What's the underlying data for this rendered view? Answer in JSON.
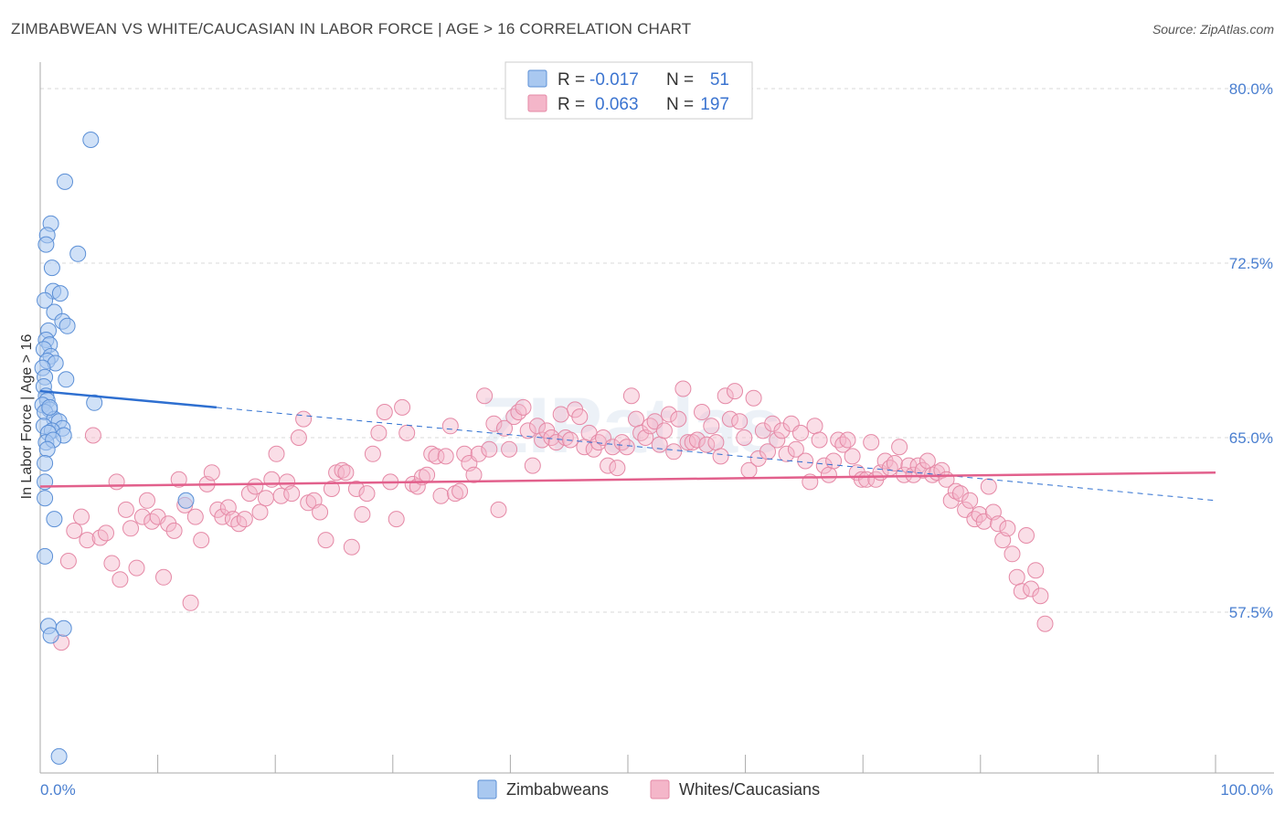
{
  "title": "ZIMBABWEAN VS WHITE/CAUCASIAN IN LABOR FORCE | AGE > 16 CORRELATION CHART",
  "source": "Source: ZipAtlas.com",
  "watermark": "ZIPatlas",
  "colors": {
    "blue_fill": "#a9c8f0",
    "blue_stroke": "#5b8fd6",
    "blue_line": "#2e6fd0",
    "pink_fill": "#f4b6c9",
    "pink_stroke": "#e589a6",
    "pink_line": "#e2608c",
    "grid": "#d9d9d9",
    "tick_label": "#4a7fd0"
  },
  "legend": {
    "rows": [
      {
        "r_label": "R =",
        "r_value": "-0.017",
        "n_label": "N =",
        "n_value": "51",
        "color": "blue"
      },
      {
        "r_label": "R =",
        "r_value": "0.063",
        "n_label": "N =",
        "n_value": "197",
        "color": "pink"
      }
    ]
  },
  "bottom_legend": [
    {
      "label": "Zimbabweans",
      "color": "blue"
    },
    {
      "label": "Whites/Caucasians",
      "color": "pink"
    }
  ],
  "chart_data": {
    "type": "scatter",
    "title": "ZIMBABWEAN VS WHITE/CAUCASIAN IN LABOR FORCE | AGE > 16 CORRELATION CHART",
    "xlabel": "",
    "ylabel": "In Labor Force | Age > 16",
    "xlim": [
      0,
      100
    ],
    "ylim": [
      50.5,
      81.5
    ],
    "x_tick_labels": [
      {
        "value": 0,
        "label": "0.0%"
      },
      {
        "value": 100,
        "label": "100.0%"
      }
    ],
    "x_minor_ticks": [
      10,
      20,
      30,
      40,
      50,
      60,
      70,
      80,
      90,
      100
    ],
    "y_ticks": [
      {
        "value": 80.0,
        "label": "80.0%"
      },
      {
        "value": 72.5,
        "label": "72.5%"
      },
      {
        "value": 65.0,
        "label": "65.0%"
      },
      {
        "value": 57.5,
        "label": "57.5%"
      }
    ],
    "grid": true,
    "series": [
      {
        "name": "Zimbabweans",
        "color": "blue",
        "trend": {
          "solid": [
            [
              0,
              67.0
            ],
            [
              15,
              66.3
            ]
          ],
          "dashed": [
            [
              15,
              66.3
            ],
            [
              100,
              62.3
            ]
          ]
        },
        "points": [
          [
            4.3,
            77.8
          ],
          [
            2.1,
            76.0
          ],
          [
            0.9,
            74.2
          ],
          [
            0.6,
            73.7
          ],
          [
            0.5,
            73.3
          ],
          [
            3.2,
            72.9
          ],
          [
            1.0,
            72.3
          ],
          [
            1.1,
            71.3
          ],
          [
            1.7,
            71.2
          ],
          [
            0.4,
            70.9
          ],
          [
            1.2,
            70.4
          ],
          [
            1.9,
            70.0
          ],
          [
            2.3,
            69.8
          ],
          [
            0.7,
            69.6
          ],
          [
            0.5,
            69.2
          ],
          [
            0.8,
            69.0
          ],
          [
            0.3,
            68.8
          ],
          [
            0.9,
            68.5
          ],
          [
            0.6,
            68.3
          ],
          [
            1.3,
            68.2
          ],
          [
            0.2,
            68.0
          ],
          [
            0.4,
            67.6
          ],
          [
            2.2,
            67.5
          ],
          [
            0.3,
            67.2
          ],
          [
            0.5,
            66.8
          ],
          [
            0.6,
            66.6
          ],
          [
            4.6,
            66.5
          ],
          [
            0.2,
            66.4
          ],
          [
            0.8,
            66.2
          ],
          [
            0.4,
            66.1
          ],
          [
            1.2,
            65.8
          ],
          [
            1.6,
            65.7
          ],
          [
            0.3,
            65.5
          ],
          [
            1.9,
            65.4
          ],
          [
            1.0,
            65.3
          ],
          [
            0.7,
            65.2
          ],
          [
            2.0,
            65.1
          ],
          [
            0.5,
            64.8
          ],
          [
            1.1,
            64.9
          ],
          [
            0.6,
            64.5
          ],
          [
            0.4,
            63.9
          ],
          [
            0.4,
            63.1
          ],
          [
            0.4,
            62.4
          ],
          [
            12.4,
            62.3
          ],
          [
            1.2,
            61.5
          ],
          [
            0.4,
            59.9
          ],
          [
            0.7,
            56.9
          ],
          [
            2.0,
            56.8
          ],
          [
            0.9,
            56.5
          ],
          [
            1.6,
            51.3
          ],
          [
            0.8,
            66.3
          ]
        ]
      },
      {
        "name": "Whites/Caucasians",
        "color": "pink",
        "trend": {
          "solid": [
            [
              0,
              62.9
            ],
            [
              100,
              63.5
            ]
          ]
        },
        "points": [
          [
            1.8,
            56.2
          ],
          [
            2.4,
            59.7
          ],
          [
            2.9,
            61.0
          ],
          [
            3.5,
            61.6
          ],
          [
            4.0,
            60.6
          ],
          [
            4.5,
            65.1
          ],
          [
            5.1,
            60.7
          ],
          [
            5.6,
            60.9
          ],
          [
            6.1,
            59.6
          ],
          [
            6.5,
            63.1
          ],
          [
            6.8,
            58.9
          ],
          [
            7.3,
            61.9
          ],
          [
            7.7,
            61.1
          ],
          [
            8.2,
            59.4
          ],
          [
            8.7,
            61.6
          ],
          [
            9.1,
            62.3
          ],
          [
            9.5,
            61.4
          ],
          [
            10.0,
            61.6
          ],
          [
            10.5,
            59.0
          ],
          [
            10.9,
            61.3
          ],
          [
            11.4,
            61.0
          ],
          [
            11.8,
            63.2
          ],
          [
            12.3,
            62.1
          ],
          [
            12.8,
            57.9
          ],
          [
            13.2,
            61.6
          ],
          [
            13.7,
            60.6
          ],
          [
            14.2,
            63.0
          ],
          [
            14.6,
            63.5
          ],
          [
            15.1,
            61.9
          ],
          [
            15.5,
            61.6
          ],
          [
            16.0,
            62.0
          ],
          [
            16.4,
            61.5
          ],
          [
            16.9,
            61.3
          ],
          [
            17.4,
            61.5
          ],
          [
            17.8,
            62.6
          ],
          [
            18.3,
            62.9
          ],
          [
            18.7,
            61.8
          ],
          [
            19.2,
            62.4
          ],
          [
            19.7,
            63.2
          ],
          [
            20.1,
            64.3
          ],
          [
            20.5,
            62.5
          ],
          [
            21.0,
            63.1
          ],
          [
            21.4,
            62.6
          ],
          [
            22.0,
            65.0
          ],
          [
            22.4,
            65.8
          ],
          [
            22.8,
            62.2
          ],
          [
            23.3,
            62.3
          ],
          [
            23.8,
            61.8
          ],
          [
            24.3,
            60.6
          ],
          [
            24.8,
            62.8
          ],
          [
            25.2,
            63.5
          ],
          [
            25.7,
            63.6
          ],
          [
            26.0,
            63.5
          ],
          [
            26.5,
            60.3
          ],
          [
            26.9,
            62.8
          ],
          [
            27.4,
            61.7
          ],
          [
            27.8,
            62.6
          ],
          [
            28.3,
            64.3
          ],
          [
            28.8,
            65.2
          ],
          [
            29.3,
            66.1
          ],
          [
            29.8,
            63.1
          ],
          [
            30.3,
            61.5
          ],
          [
            30.8,
            66.3
          ],
          [
            31.2,
            65.2
          ],
          [
            31.7,
            63.0
          ],
          [
            32.1,
            62.9
          ],
          [
            32.5,
            63.3
          ],
          [
            32.9,
            63.4
          ],
          [
            33.3,
            64.3
          ],
          [
            33.7,
            64.2
          ],
          [
            34.1,
            62.5
          ],
          [
            34.5,
            64.2
          ],
          [
            34.9,
            65.5
          ],
          [
            35.3,
            62.6
          ],
          [
            35.7,
            62.7
          ],
          [
            36.1,
            64.3
          ],
          [
            36.5,
            63.9
          ],
          [
            36.9,
            63.4
          ],
          [
            37.3,
            64.3
          ],
          [
            37.8,
            66.8
          ],
          [
            38.2,
            64.5
          ],
          [
            38.6,
            65.6
          ],
          [
            39.0,
            61.9
          ],
          [
            39.5,
            65.4
          ],
          [
            39.9,
            64.5
          ],
          [
            40.3,
            65.9
          ],
          [
            40.7,
            66.1
          ],
          [
            41.1,
            66.3
          ],
          [
            41.5,
            65.3
          ],
          [
            41.9,
            63.8
          ],
          [
            42.3,
            65.5
          ],
          [
            42.7,
            64.9
          ],
          [
            43.1,
            65.3
          ],
          [
            43.5,
            65.0
          ],
          [
            43.9,
            64.8
          ],
          [
            44.3,
            66.0
          ],
          [
            44.7,
            65.0
          ],
          [
            45.1,
            64.9
          ],
          [
            45.5,
            66.2
          ],
          [
            45.9,
            65.9
          ],
          [
            46.3,
            64.6
          ],
          [
            46.7,
            65.2
          ],
          [
            47.1,
            64.5
          ],
          [
            47.5,
            64.8
          ],
          [
            47.9,
            65.0
          ],
          [
            48.3,
            63.8
          ],
          [
            48.7,
            64.6
          ],
          [
            49.1,
            63.7
          ],
          [
            49.5,
            64.8
          ],
          [
            49.9,
            64.6
          ],
          [
            50.3,
            66.8
          ],
          [
            50.7,
            65.8
          ],
          [
            51.1,
            65.2
          ],
          [
            51.5,
            65.0
          ],
          [
            51.9,
            65.5
          ],
          [
            52.3,
            65.7
          ],
          [
            52.7,
            64.7
          ],
          [
            53.1,
            65.3
          ],
          [
            53.5,
            66.0
          ],
          [
            53.9,
            64.4
          ],
          [
            54.3,
            65.8
          ],
          [
            54.7,
            67.1
          ],
          [
            55.1,
            64.8
          ],
          [
            55.5,
            64.8
          ],
          [
            55.9,
            64.9
          ],
          [
            56.3,
            66.1
          ],
          [
            56.7,
            64.7
          ],
          [
            57.1,
            65.5
          ],
          [
            57.5,
            64.8
          ],
          [
            57.9,
            64.2
          ],
          [
            58.3,
            66.8
          ],
          [
            58.7,
            65.8
          ],
          [
            59.1,
            67.0
          ],
          [
            59.5,
            65.7
          ],
          [
            59.9,
            65.0
          ],
          [
            60.3,
            63.6
          ],
          [
            60.7,
            66.7
          ],
          [
            61.1,
            64.1
          ],
          [
            61.5,
            65.3
          ],
          [
            61.9,
            64.4
          ],
          [
            62.3,
            65.6
          ],
          [
            62.7,
            64.9
          ],
          [
            63.1,
            65.3
          ],
          [
            63.5,
            64.3
          ],
          [
            63.9,
            65.6
          ],
          [
            64.3,
            64.5
          ],
          [
            64.7,
            65.2
          ],
          [
            65.1,
            64.0
          ],
          [
            65.5,
            63.1
          ],
          [
            65.9,
            65.5
          ],
          [
            66.3,
            64.9
          ],
          [
            66.7,
            63.8
          ],
          [
            67.1,
            63.4
          ],
          [
            67.5,
            64.0
          ],
          [
            67.9,
            64.9
          ],
          [
            68.3,
            64.7
          ],
          [
            68.7,
            64.9
          ],
          [
            69.1,
            64.2
          ],
          [
            69.5,
            63.5
          ],
          [
            69.9,
            63.2
          ],
          [
            70.3,
            63.2
          ],
          [
            70.7,
            64.8
          ],
          [
            71.1,
            63.2
          ],
          [
            71.5,
            63.5
          ],
          [
            71.9,
            64.0
          ],
          [
            72.3,
            63.7
          ],
          [
            72.7,
            63.9
          ],
          [
            73.1,
            64.6
          ],
          [
            73.5,
            63.4
          ],
          [
            73.9,
            63.8
          ],
          [
            74.3,
            63.4
          ],
          [
            74.7,
            63.8
          ],
          [
            75.1,
            63.6
          ],
          [
            75.5,
            64.0
          ],
          [
            75.9,
            63.4
          ],
          [
            76.3,
            63.5
          ],
          [
            76.7,
            63.6
          ],
          [
            77.1,
            63.2
          ],
          [
            77.5,
            62.3
          ],
          [
            77.9,
            62.7
          ],
          [
            78.3,
            62.6
          ],
          [
            78.7,
            61.9
          ],
          [
            79.1,
            62.3
          ],
          [
            79.5,
            61.5
          ],
          [
            79.9,
            61.7
          ],
          [
            80.3,
            61.4
          ],
          [
            80.7,
            62.9
          ],
          [
            81.1,
            61.8
          ],
          [
            81.5,
            61.3
          ],
          [
            81.9,
            60.6
          ],
          [
            82.3,
            61.1
          ],
          [
            82.7,
            60.0
          ],
          [
            83.1,
            59.0
          ],
          [
            83.5,
            58.4
          ],
          [
            83.9,
            60.8
          ],
          [
            84.3,
            58.5
          ],
          [
            84.7,
            59.3
          ],
          [
            85.1,
            58.2
          ],
          [
            85.5,
            57.0
          ]
        ]
      }
    ]
  }
}
